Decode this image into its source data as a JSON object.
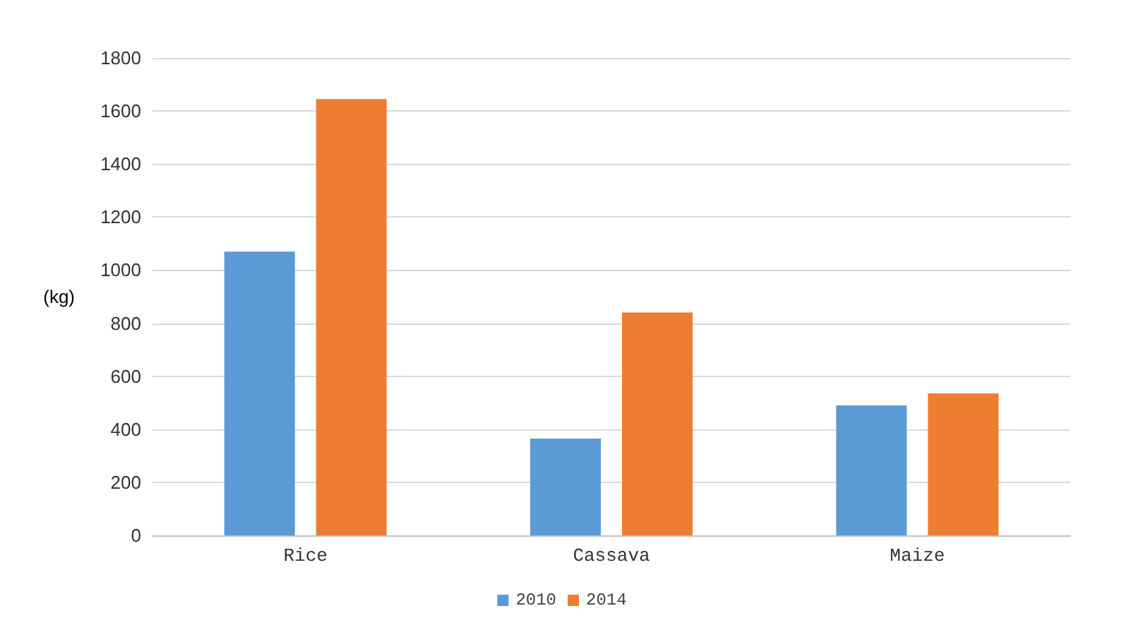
{
  "chart_data": {
    "type": "bar",
    "ylabel": "(kg)",
    "categories": [
      "Rice",
      "Cassava",
      "Maize"
    ],
    "series": [
      {
        "name": "2010",
        "color": "#5b9bd5",
        "values": [
          1070,
          365,
          490
        ]
      },
      {
        "name": "2014",
        "color": "#ed7d31",
        "values": [
          1645,
          840,
          535
        ]
      }
    ],
    "ylim": [
      0,
      1800
    ],
    "yticks": [
      0,
      200,
      400,
      600,
      800,
      1000,
      1200,
      1400,
      1600,
      1800
    ],
    "grid": "y",
    "legend": "bottom"
  }
}
